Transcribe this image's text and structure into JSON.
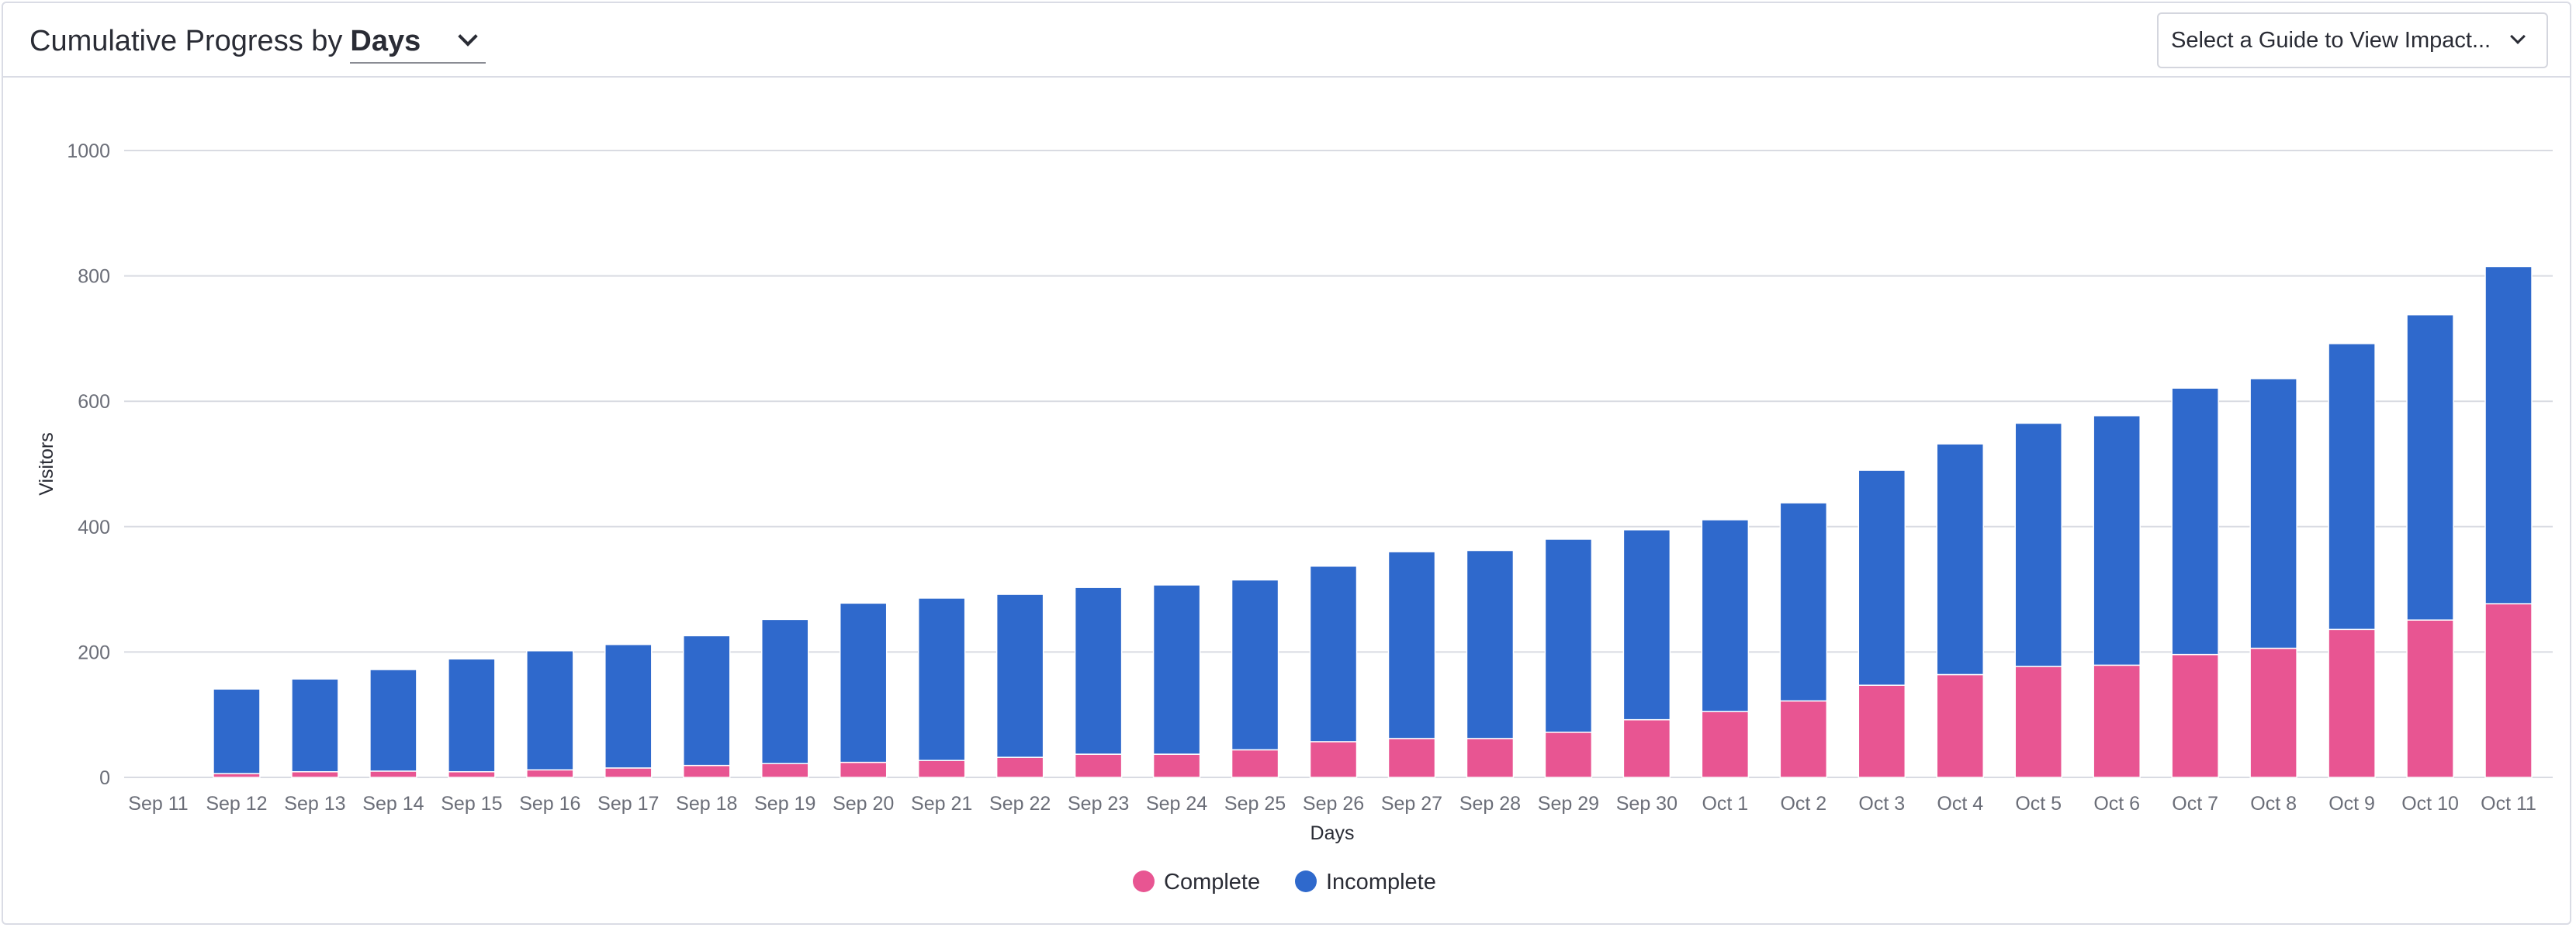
{
  "header": {
    "title_prefix": "Cumulative Progress by",
    "group_by_value": "Days",
    "guide_select_label": "Select a Guide to View Impact..."
  },
  "colors": {
    "complete": "#e85592",
    "incomplete": "#2f69cc",
    "grid": "#d9dbe2",
    "axis_text": "#6b6e78"
  },
  "icons": {
    "group_by_chevron": "chevron-down-icon",
    "guide_chevron": "chevron-down-icon"
  },
  "chart_data": {
    "type": "bar",
    "stacked": true,
    "xlabel": "Days",
    "ylabel": "Visitors",
    "ylim": [
      0,
      1000
    ],
    "yticks": [
      0,
      200,
      400,
      600,
      800,
      1000
    ],
    "grid": true,
    "legend_placement": "bottom-center",
    "categories": [
      "Sep 11",
      "Sep 12",
      "Sep 13",
      "Sep 14",
      "Sep 15",
      "Sep 16",
      "Sep 17",
      "Sep 18",
      "Sep 19",
      "Sep 20",
      "Sep 21",
      "Sep 22",
      "Sep 23",
      "Sep 24",
      "Sep 25",
      "Sep 26",
      "Sep 27",
      "Sep 28",
      "Sep 29",
      "Sep 30",
      "Oct 1",
      "Oct 2",
      "Oct 3",
      "Oct 4",
      "Oct 5",
      "Oct 6",
      "Oct 7",
      "Oct 8",
      "Oct 9",
      "Oct 10",
      "Oct 11"
    ],
    "series": [
      {
        "name": "Complete",
        "color": "#e85592",
        "values": [
          0,
          6,
          9,
          10,
          9,
          12,
          15,
          19,
          22,
          24,
          27,
          32,
          37,
          37,
          44,
          57,
          62,
          62,
          72,
          92,
          105,
          122,
          147,
          164,
          177,
          179,
          196,
          206,
          236,
          251,
          277
        ]
      },
      {
        "name": "Incomplete",
        "color": "#2f69cc",
        "values": [
          0,
          135,
          148,
          162,
          180,
          190,
          197,
          207,
          230,
          254,
          259,
          260,
          266,
          270,
          271,
          280,
          298,
          300,
          308,
          303,
          306,
          316,
          343,
          368,
          388,
          398,
          425,
          430,
          456,
          487,
          538
        ]
      }
    ]
  }
}
